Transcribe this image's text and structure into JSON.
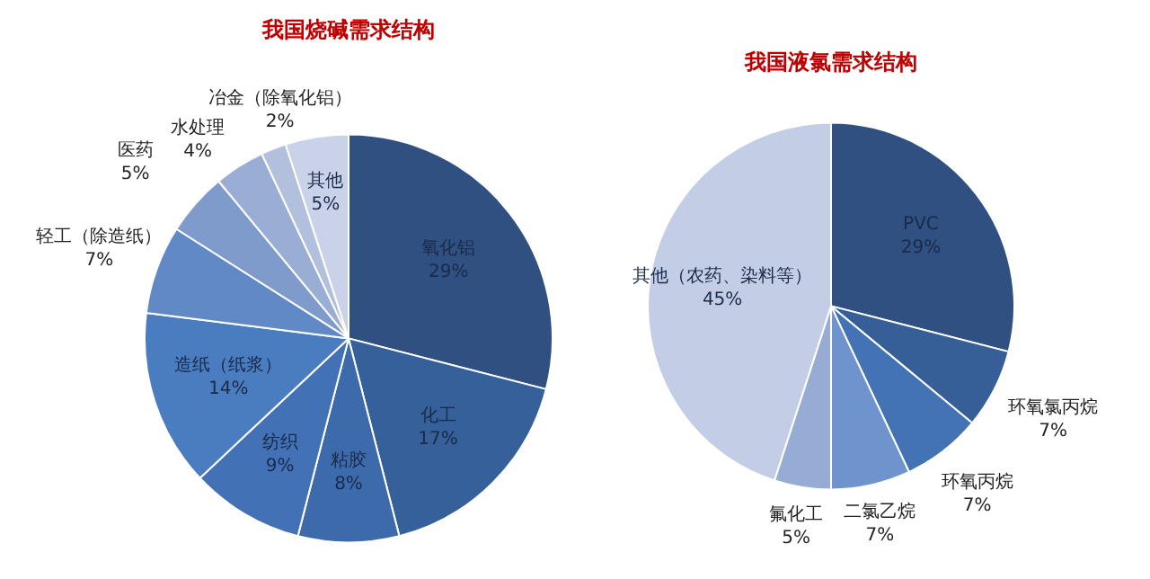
{
  "chart_data": [
    {
      "type": "pie",
      "title": "我国烧碱需求结构",
      "categories": [
        "氧化铝",
        "化工",
        "粘胶",
        "纺织",
        "造纸（纸浆）",
        "轻工（除造纸）",
        "医药",
        "水处理",
        "冶金（除氧化铝）",
        "其他"
      ],
      "values": [
        29,
        17,
        8,
        9,
        14,
        7,
        5,
        4,
        2,
        5
      ],
      "colors": [
        "#2f5080",
        "#35609a",
        "#3c6aab",
        "#4272b5",
        "#4a7cc0",
        "#6189c5",
        "#7f9bcb",
        "#9aaed5",
        "#b2c0de",
        "#c9d2e8"
      ],
      "value_labels": [
        "29%",
        "17%",
        "8%",
        "9%",
        "14%",
        "7%",
        "5%",
        "4%",
        "2%",
        "5%"
      ]
    },
    {
      "type": "pie",
      "title": "我国液氯需求结构",
      "categories": [
        "PVC",
        "环氧氯丙烷",
        "环氧丙烷",
        "二氯乙烷",
        "氟化工",
        "其他（农药、染料等）"
      ],
      "values": [
        29,
        7,
        7,
        7,
        5,
        45
      ],
      "colors": [
        "#2f5080",
        "#365f98",
        "#4373b5",
        "#6f93cc",
        "#97acd4",
        "#c3cde5"
      ],
      "value_labels": [
        "29%",
        "7%",
        "7%",
        "7%",
        "5%",
        "45%"
      ]
    }
  ]
}
